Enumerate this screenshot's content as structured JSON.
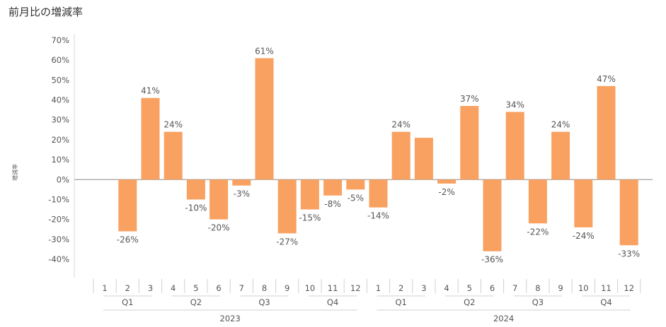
{
  "chart_data": {
    "type": "bar",
    "title": "前月比の増減率",
    "ylabel": "増減率",
    "xlabel": "",
    "ylim": [
      -0.5,
      0.7
    ],
    "yticks": [
      0.7,
      0.6,
      0.5,
      0.4,
      0.3,
      0.2,
      0.1,
      0,
      -0.1,
      -0.2,
      -0.3,
      -0.4
    ],
    "ytick_labels": [
      "70%",
      "60%",
      "50%",
      "40%",
      "30%",
      "20%",
      "10%",
      "0%",
      "-10%",
      "-20%",
      "-30%",
      "-40%"
    ],
    "bar_color": "#F9A161",
    "categories": [
      "1",
      "2",
      "3",
      "4",
      "5",
      "6",
      "7",
      "8",
      "9",
      "10",
      "11",
      "12",
      "1",
      "2",
      "3",
      "4",
      "5",
      "6",
      "7",
      "8",
      "9",
      "10",
      "11",
      "12"
    ],
    "values": [
      null,
      -0.26,
      0.41,
      0.24,
      -0.1,
      -0.2,
      -0.03,
      0.61,
      -0.27,
      -0.15,
      -0.08,
      -0.05,
      -0.14,
      0.24,
      0.21,
      -0.02,
      0.37,
      -0.36,
      0.34,
      -0.22,
      0.24,
      -0.24,
      0.47,
      -0.33
    ],
    "labels": [
      "",
      "-26%",
      "41%",
      "24%",
      "-10%",
      "-20%",
      "-3%",
      "61%",
      "-27%",
      "-15%",
      "-8%",
      "-5%",
      "-14%",
      "24%",
      "",
      "-2%",
      "37%",
      "-36%",
      "34%",
      "-22%",
      "24%",
      "-24%",
      "47%",
      "-33%"
    ],
    "quarters": [
      {
        "label": "Q1",
        "start": 0,
        "end": 2
      },
      {
        "label": "Q2",
        "start": 3,
        "end": 5
      },
      {
        "label": "Q3",
        "start": 6,
        "end": 8
      },
      {
        "label": "Q4",
        "start": 9,
        "end": 11
      },
      {
        "label": "Q1",
        "start": 12,
        "end": 14
      },
      {
        "label": "Q2",
        "start": 15,
        "end": 17
      },
      {
        "label": "Q3",
        "start": 18,
        "end": 20
      },
      {
        "label": "Q4",
        "start": 21,
        "end": 23
      }
    ],
    "years": [
      {
        "label": "2023",
        "start": 0,
        "end": 11
      },
      {
        "label": "2024",
        "start": 12,
        "end": 23
      }
    ]
  }
}
